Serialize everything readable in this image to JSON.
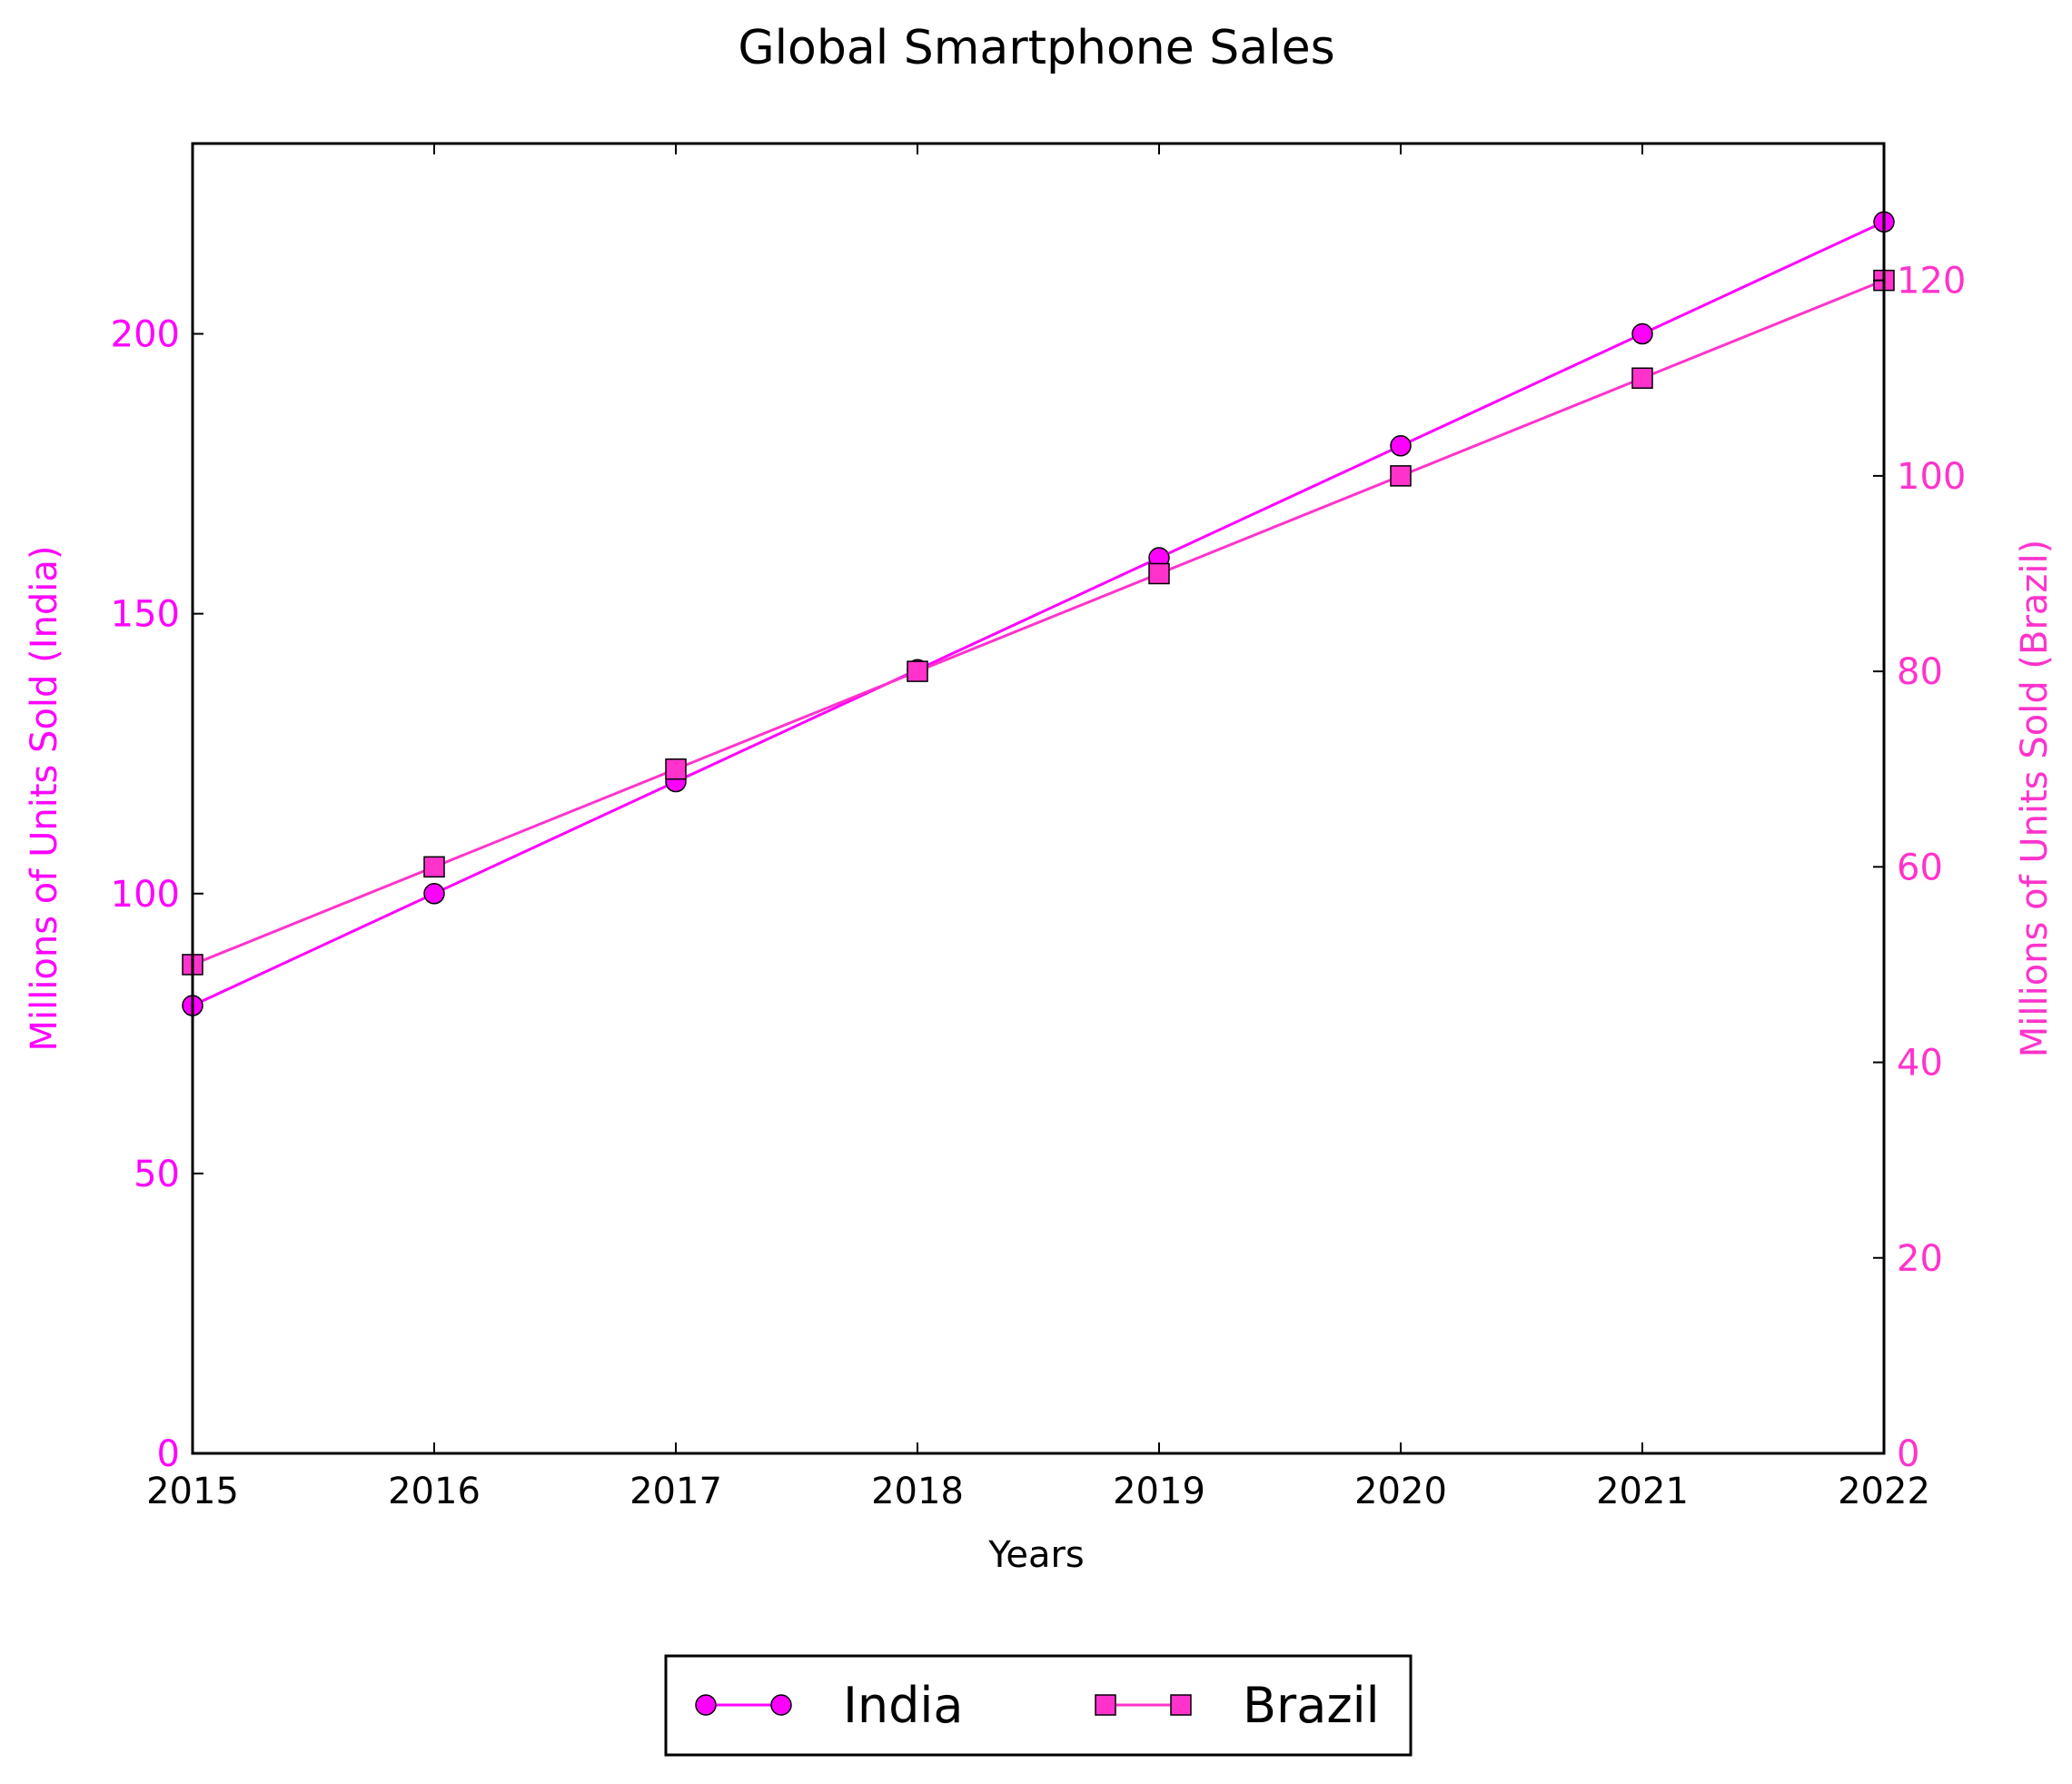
{
  "chart_data": {
    "type": "line",
    "title": "Global Smartphone Sales",
    "xlabel": "Years",
    "x": [
      "2015",
      "2016",
      "2017",
      "2018",
      "2019",
      "2020",
      "2021",
      "2022"
    ],
    "xlim": [
      2015,
      2022
    ],
    "y_left": {
      "label": "Millions of Units Sold (India)",
      "ylim": [
        0,
        234
      ],
      "ticks": [
        "0",
        "50",
        "100",
        "150",
        "200"
      ],
      "color": "#ff00ff"
    },
    "y_right": {
      "label": "Millions of Units Sold (Brazil)",
      "ylim": [
        0,
        134
      ],
      "ticks": [
        "0",
        "20",
        "40",
        "60",
        "80",
        "100",
        "120"
      ],
      "color": "#ff33cc"
    },
    "series": [
      {
        "name": "India",
        "axis": "left",
        "marker": "circle",
        "color": "#ff00ff",
        "values": [
          80,
          100,
          120,
          140,
          160,
          180,
          200,
          220
        ]
      },
      {
        "name": "Brazil",
        "axis": "right",
        "marker": "square",
        "color": "#ff33cc",
        "values": [
          50,
          60,
          70,
          80,
          90,
          100,
          110,
          120
        ]
      }
    ],
    "grid": false,
    "legend": "bottom-center"
  }
}
